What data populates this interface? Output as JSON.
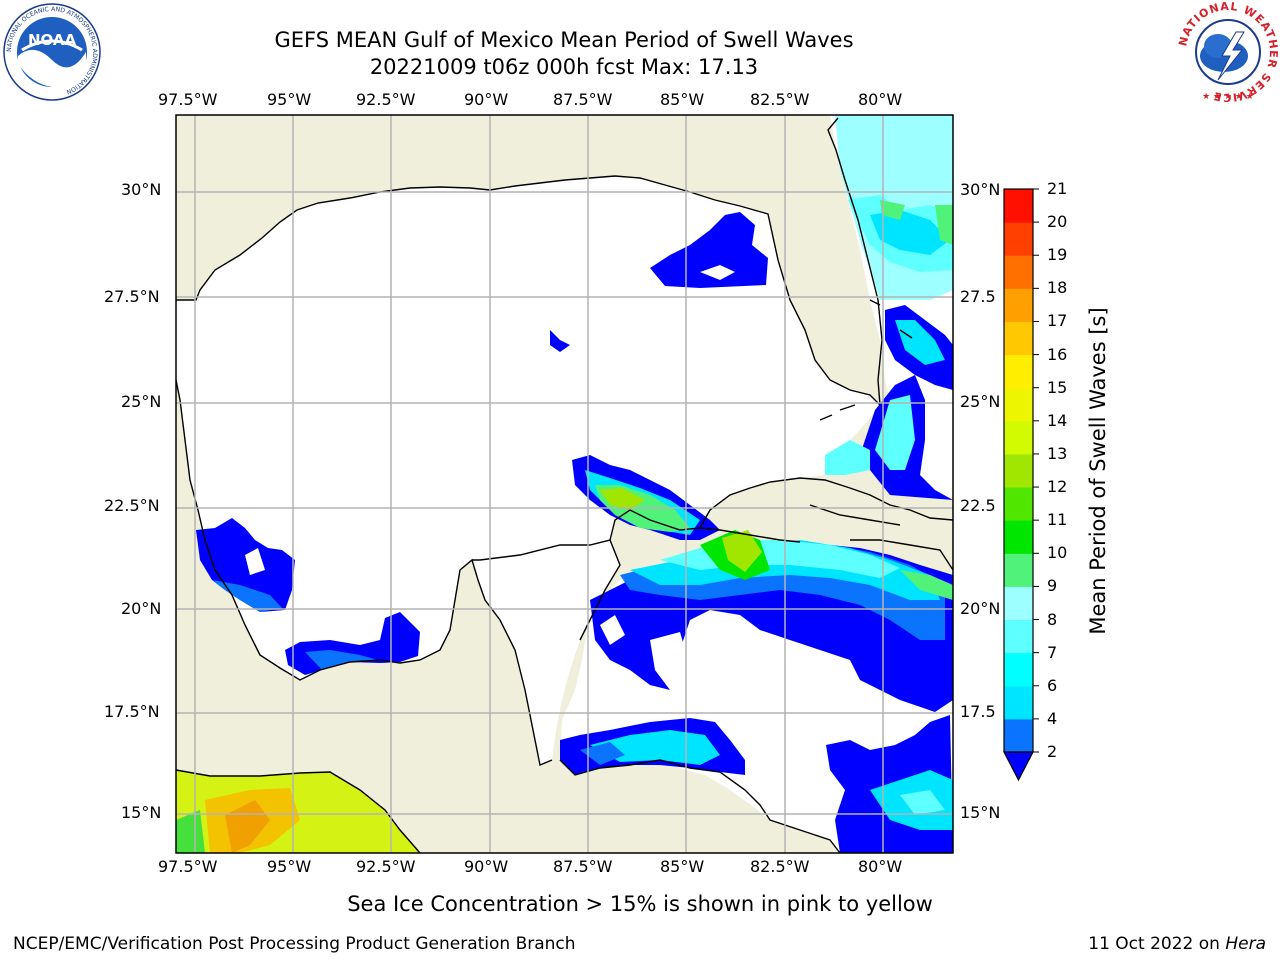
{
  "title": {
    "line1": "GEFS MEAN Gulf of Mexico Mean Period of Swell Waves",
    "line2": "20221009 t06z 000h fcst   Max: 17.13"
  },
  "map": {
    "lon_labels": [
      "97.5°W",
      "95°W",
      "92.5°W",
      "90°W",
      "87.5°W",
      "85°W",
      "82.5°W",
      "80°W"
    ],
    "lat_labels": [
      "30°N",
      "27.5°N",
      "25°N",
      "22.5°N",
      "20°N",
      "17.5°N",
      "15°N"
    ],
    "right_lat_labels": [
      "30°N",
      "27.5",
      "25°N",
      "22.5",
      "20°N",
      "17.5",
      "15°N"
    ],
    "extent": {
      "lon_min": -98,
      "lon_max": -78.2,
      "lat_min": 14,
      "lat_max": 31.8
    },
    "colors": {
      "land": "#efefdc",
      "ocean_blank": "#ffffff",
      "grid": "#b4b4b4",
      "coast": "#000000"
    }
  },
  "colorbar": {
    "label": "Mean Period of Swell Waves [s]",
    "ticks": [
      "2",
      "4",
      "6",
      "7",
      "8",
      "9",
      "10",
      "11",
      "12",
      "13",
      "14",
      "15",
      "16",
      "17",
      "18",
      "19",
      "20",
      "21"
    ],
    "colors": [
      "#0000ff",
      "#0a74ff",
      "#00e5ff",
      "#00ffff",
      "#5effff",
      "#9dffff",
      "#50f27a",
      "#00e600",
      "#50e600",
      "#a0e600",
      "#d2fa00",
      "#eef500",
      "#ffee00",
      "#ffc800",
      "#ffa000",
      "#ff7000",
      "#ff4000",
      "#ff1000"
    ]
  },
  "caption": "Sea Ice Concentration > 15% is shown in pink to yellow",
  "footer": {
    "left": "NCEP/EMC/Verification Post Processing Product Generation Branch",
    "right_date": "11 Oct 2022 on ",
    "right_host": "Hera"
  },
  "logos": {
    "left_text": "NOAA",
    "left_ring": "NATIONAL OCEANIC AND ATMOSPHERIC ADMINISTRATION",
    "left_dept": "U.S. DEPARTMENT OF COMMERCE",
    "right_ring": "NATIONAL WEATHER SERVICE"
  }
}
